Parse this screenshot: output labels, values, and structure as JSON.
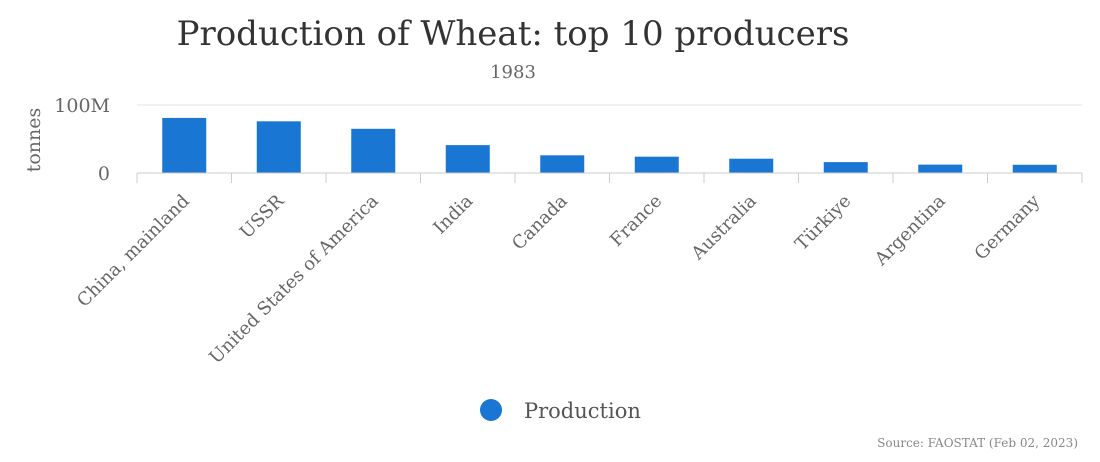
{
  "chart_data": {
    "type": "bar",
    "title": "Production of Wheat: top 10 producers",
    "subtitle": "1983",
    "ylabel": "tonnes",
    "xlabel": "",
    "ylim": [
      0,
      100000000
    ],
    "y_ticks": [
      {
        "value": 0,
        "label": "0"
      },
      {
        "value": 100000000,
        "label": "100M"
      }
    ],
    "categories": [
      "China, mainland",
      "USSR",
      "United States of America",
      "India",
      "Canada",
      "France",
      "Australia",
      "Türkiye",
      "Argentina",
      "Germany"
    ],
    "series": [
      {
        "name": "Production",
        "color": "#1976d2",
        "values": [
          81000000,
          76000000,
          65000000,
          41000000,
          26000000,
          24000000,
          21000000,
          16000000,
          12300000,
          12100000
        ]
      }
    ],
    "grid": true,
    "legend": "bottom-center",
    "source": "Source: FAOSTAT (Feb 02, 2023)"
  }
}
